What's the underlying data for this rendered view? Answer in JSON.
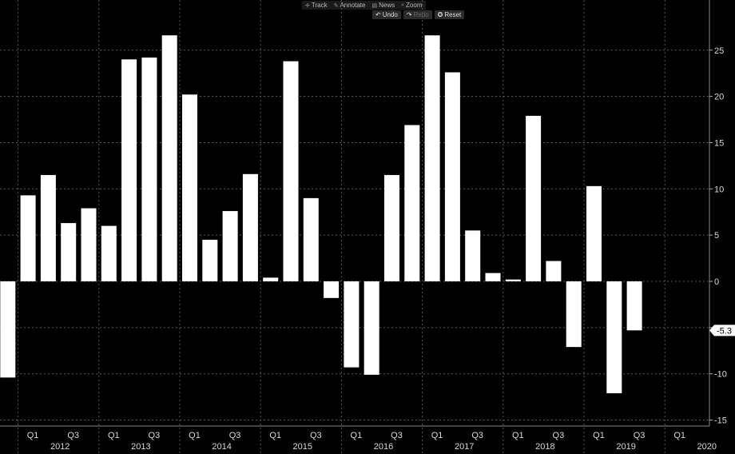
{
  "toolbar": {
    "track_label": "Track",
    "annotate_label": "Annotate",
    "news_label": "News",
    "zoom_label": "Zoom",
    "undo_label": "Undo",
    "redo_label": "Redo",
    "reset_label": "Reset"
  },
  "colors": {
    "background": "#000000",
    "bar": "#ffffff",
    "grid": "#555555",
    "last_value_bg": "#ffffff"
  },
  "chart_data": {
    "type": "bar",
    "title": "",
    "xlabel": "",
    "ylabel": "",
    "ylim": [
      -15,
      28
    ],
    "yticks": [
      -15,
      -10,
      -5,
      0,
      5,
      10,
      15,
      20,
      25
    ],
    "y_axis_side": "right",
    "grid": true,
    "last_value_label": "-5.3",
    "categories": [
      "2011 Q4",
      "2012 Q1",
      "2012 Q2",
      "2012 Q3",
      "2012 Q4",
      "2013 Q1",
      "2013 Q2",
      "2013 Q3",
      "2013 Q4",
      "2014 Q1",
      "2014 Q2",
      "2014 Q3",
      "2014 Q4",
      "2015 Q1",
      "2015 Q2",
      "2015 Q3",
      "2015 Q4",
      "2016 Q1",
      "2016 Q2",
      "2016 Q3",
      "2016 Q4",
      "2017 Q1",
      "2017 Q2",
      "2017 Q3",
      "2017 Q4",
      "2018 Q1",
      "2018 Q2",
      "2018 Q3",
      "2018 Q4",
      "2019 Q1",
      "2019 Q2",
      "2019 Q3",
      "2019 Q4",
      "2020 Q1",
      "2020 Q2",
      "2020 Q3"
    ],
    "values": [
      -10.4,
      9.3,
      11.5,
      6.3,
      7.9,
      6.0,
      24.0,
      24.2,
      26.6,
      20.2,
      4.5,
      7.6,
      11.6,
      0.4,
      23.8,
      9.0,
      -1.8,
      -9.3,
      -10.1,
      11.5,
      16.9,
      26.6,
      22.6,
      5.5,
      0.9,
      0.2,
      17.9,
      2.2,
      -7.1,
      10.3,
      -12.1,
      -5.3,
      null,
      null,
      null,
      null
    ],
    "x_quarter_labels": [
      "Q1",
      "Q3",
      "Q1",
      "Q3",
      "Q1",
      "Q3",
      "Q1",
      "Q3",
      "Q1",
      "Q3",
      "Q1",
      "Q3",
      "Q1",
      "Q3",
      "Q1",
      "Q3",
      "Q1"
    ],
    "x_year_labels": [
      "2012",
      "2013",
      "2014",
      "2015",
      "2016",
      "2017",
      "2018",
      "2019",
      "2020"
    ]
  }
}
